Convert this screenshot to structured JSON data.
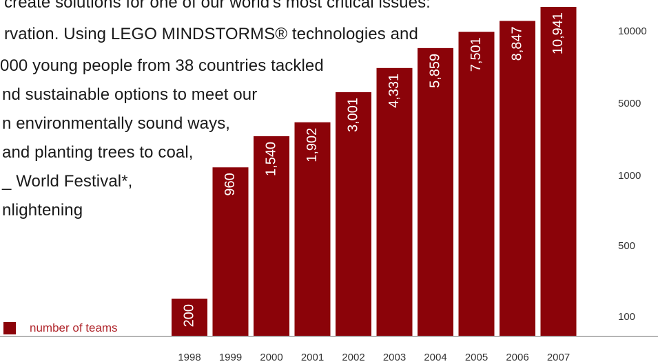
{
  "paragraph": {
    "lines": [
      "create solutions for one of our world's most critical issues:",
      "rvation. Using LEGO MINDSTORMS® technologies and",
      "000 young people from 38 countries tackled",
      "nd sustainable options to meet our",
      "n environmentally sound ways,",
      "and planting trees to coal,",
      "_ World Festival*,",
      "nlightening"
    ]
  },
  "legend": {
    "label": "number of teams",
    "color": "#8b0309"
  },
  "colors": {
    "bar": "#8b0309",
    "bar_label": "#ffffff",
    "tick_label": "#333333",
    "baseline": "#b5b5b5",
    "legend_text": "#b0262c"
  },
  "chart_data": {
    "type": "bar",
    "categories": [
      "1998",
      "1999",
      "2000",
      "2001",
      "2002",
      "2003",
      "2004",
      "2005",
      "2006",
      "2007"
    ],
    "values": [
      200,
      960,
      1540,
      1902,
      3001,
      4331,
      5859,
      7501,
      8847,
      10941
    ],
    "value_labels": [
      "200",
      "960",
      "1,540",
      "1,902",
      "3,001",
      "4,331",
      "5,859",
      "7,501",
      "8,847",
      "10,941"
    ],
    "y_scale": "log",
    "y_ticks": [
      100,
      500,
      1000,
      5000,
      10000
    ],
    "y_tick_labels": [
      "100",
      "500",
      "1000",
      "5000",
      "10000"
    ],
    "y_axis_position": "right",
    "grid": false,
    "legend_position": "bottom-left",
    "series": [
      {
        "name": "number of teams",
        "values": [
          200,
          960,
          1540,
          1902,
          3001,
          4331,
          5859,
          7501,
          8847,
          10941
        ]
      }
    ]
  }
}
